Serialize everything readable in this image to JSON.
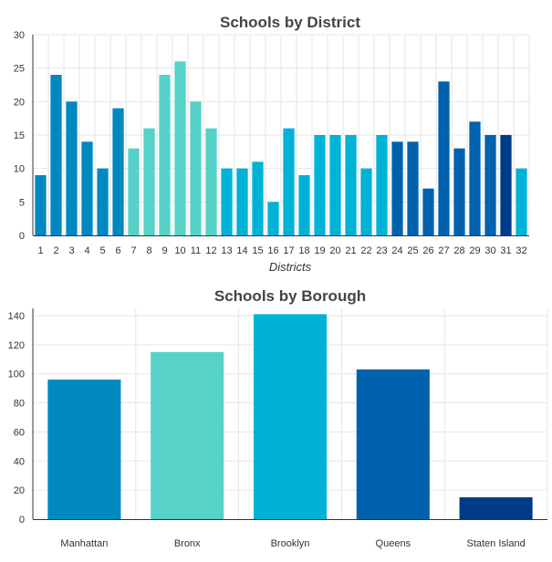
{
  "chart_data": [
    {
      "type": "bar",
      "title": "Schools by District",
      "xlabel": "Districts",
      "ylabel": "",
      "ylim": [
        0,
        30
      ],
      "yticks": [
        0,
        5,
        10,
        15,
        20,
        25,
        30
      ],
      "categories": [
        "1",
        "2",
        "3",
        "4",
        "5",
        "6",
        "7",
        "8",
        "9",
        "10",
        "11",
        "12",
        "13",
        "14",
        "15",
        "16",
        "17",
        "18",
        "19",
        "20",
        "21",
        "22",
        "23",
        "24",
        "25",
        "26",
        "27",
        "28",
        "29",
        "30",
        "31",
        "32"
      ],
      "values": [
        9,
        24,
        20,
        14,
        10,
        19,
        13,
        16,
        24,
        26,
        20,
        16,
        10,
        10,
        11,
        5,
        16,
        9,
        15,
        15,
        15,
        10,
        15,
        14,
        14,
        7,
        23,
        13,
        17,
        15,
        15,
        10
      ],
      "colors": [
        "#0089c0",
        "#0089c0",
        "#0089c0",
        "#0089c0",
        "#0089c0",
        "#0089c0",
        "#57d2c8",
        "#57d2c8",
        "#57d2c8",
        "#57d2c8",
        "#57d2c8",
        "#57d2c8",
        "#00b3d6",
        "#00b3d6",
        "#00b3d6",
        "#00b3d6",
        "#00b3d6",
        "#00b3d6",
        "#00b3d6",
        "#00b3d6",
        "#00b3d6",
        "#00b3d6",
        "#00b3d6",
        "#0061ac",
        "#0061ac",
        "#0061ac",
        "#0061ac",
        "#0061ac",
        "#0061ac",
        "#0061ac",
        "#003b8a",
        "#00b3d6"
      ],
      "grid": true
    },
    {
      "type": "bar",
      "title": "Schools by Borough",
      "xlabel": "",
      "ylabel": "",
      "ylim": [
        0,
        145
      ],
      "yticks": [
        0,
        20,
        40,
        60,
        80,
        100,
        120,
        140
      ],
      "categories": [
        "Manhattan",
        "Bronx",
        "Brooklyn",
        "Queens",
        "Staten Island"
      ],
      "values": [
        96,
        115,
        141,
        103,
        15
      ],
      "colors": [
        "#0089c0",
        "#57d2c8",
        "#00b3d6",
        "#0061ac",
        "#003b8a"
      ],
      "grid": true
    }
  ]
}
